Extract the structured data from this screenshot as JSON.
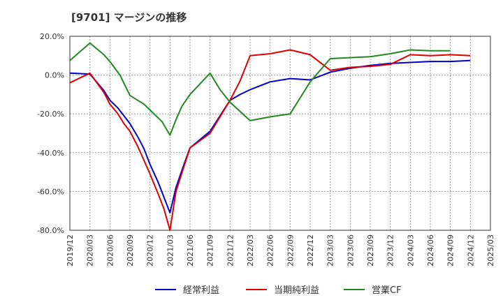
{
  "chart_data": {
    "type": "line",
    "title": "[9701]  マージンの推移",
    "xlabel": "",
    "ylabel": "",
    "ylim": [
      -80,
      20
    ],
    "yticks": [
      20,
      0,
      -20,
      -40,
      -60,
      -80
    ],
    "ytick_labels": [
      "20.0%",
      "0.0%",
      "-20.0%",
      "-40.0%",
      "-60.0%",
      "-80.0%"
    ],
    "grid": true,
    "legend_position": "bottom",
    "categories": [
      "2019/12",
      "2020/03",
      "2020/06",
      "2020/09",
      "2020/12",
      "2021/03",
      "2021/06",
      "2021/09",
      "2021/12",
      "2022/03",
      "2022/06",
      "2022/09",
      "2022/12",
      "2023/03",
      "2023/06",
      "2023/09",
      "2023/12",
      "2024/03",
      "2024/06",
      "2024/09",
      "2024/12",
      "2025/03"
    ],
    "x_months": [
      0,
      1,
      1.5,
      2,
      2.5,
      3,
      3.5,
      4,
      4.5,
      5,
      5.5,
      6,
      6.5,
      7,
      7.5,
      8,
      8.5,
      9,
      9.5,
      10,
      10.5,
      11,
      12,
      13,
      14,
      15,
      16,
      17,
      18,
      19,
      20,
      21
    ],
    "series": [
      {
        "name": "経常利益",
        "color": "#0000cc",
        "points": [
          [
            0,
            1.0
          ],
          [
            1,
            0.5
          ],
          [
            1.7,
            -8
          ],
          [
            2,
            -13
          ],
          [
            2.4,
            -17
          ],
          [
            2.7,
            -21
          ],
          [
            3,
            -25
          ],
          [
            3.4,
            -32
          ],
          [
            3.7,
            -38
          ],
          [
            4,
            -46
          ],
          [
            4.4,
            -55
          ],
          [
            4.7,
            -63
          ],
          [
            5,
            -71
          ],
          [
            5.3,
            -58
          ],
          [
            5.7,
            -46
          ],
          [
            6,
            -37.5
          ],
          [
            7,
            -29
          ],
          [
            8,
            -13
          ],
          [
            8.5,
            -10
          ],
          [
            9,
            -7.5
          ],
          [
            10,
            -3.5
          ],
          [
            11,
            -1.8
          ],
          [
            12,
            -2.5
          ],
          [
            13,
            1.5
          ],
          [
            14,
            3.5
          ],
          [
            15,
            5.0
          ],
          [
            16,
            6.0
          ],
          [
            17,
            6.5
          ],
          [
            18,
            7.0
          ],
          [
            19,
            7.0
          ],
          [
            20,
            7.5
          ]
        ]
      },
      {
        "name": "当期純利益",
        "color": "#dd0000",
        "points": [
          [
            0,
            -4
          ],
          [
            1,
            1.0
          ],
          [
            1.7,
            -9
          ],
          [
            2,
            -15
          ],
          [
            2.4,
            -20
          ],
          [
            2.7,
            -25
          ],
          [
            3,
            -29
          ],
          [
            3.4,
            -37
          ],
          [
            3.7,
            -44
          ],
          [
            4,
            -51
          ],
          [
            4.4,
            -61
          ],
          [
            4.7,
            -69
          ],
          [
            5,
            -80
          ],
          [
            5.3,
            -60
          ],
          [
            5.7,
            -47
          ],
          [
            6,
            -37.5
          ],
          [
            7,
            -30
          ],
          [
            8,
            -13
          ],
          [
            8.5,
            -3
          ],
          [
            9,
            10
          ],
          [
            10,
            11
          ],
          [
            11,
            13
          ],
          [
            12,
            10.5
          ],
          [
            13,
            2.5
          ],
          [
            14,
            4.0
          ],
          [
            15,
            4.5
          ],
          [
            16,
            5.5
          ],
          [
            17,
            10.5
          ],
          [
            18,
            10.0
          ],
          [
            19,
            10.5
          ],
          [
            20,
            10.0
          ]
        ]
      },
      {
        "name": "営業CF",
        "color": "#228822",
        "points": [
          [
            0,
            7.5
          ],
          [
            1,
            16.5
          ],
          [
            1.7,
            10.5
          ],
          [
            2,
            7
          ],
          [
            2.5,
            0
          ],
          [
            3,
            -10.5
          ],
          [
            3.7,
            -15
          ],
          [
            4,
            -18
          ],
          [
            4.6,
            -24
          ],
          [
            5,
            -31
          ],
          [
            5.3,
            -23
          ],
          [
            5.6,
            -16
          ],
          [
            6,
            -10
          ],
          [
            7,
            1.0
          ],
          [
            7.5,
            -7.5
          ],
          [
            8,
            -14
          ],
          [
            9,
            -23.5
          ],
          [
            10,
            -21.5
          ],
          [
            11,
            -20
          ],
          [
            12,
            -3.5
          ],
          [
            13,
            8.5
          ],
          [
            14,
            9.0
          ],
          [
            15,
            9.5
          ],
          [
            16,
            11
          ],
          [
            17,
            13
          ],
          [
            18,
            12.5
          ],
          [
            19,
            12.5
          ]
        ]
      }
    ]
  }
}
